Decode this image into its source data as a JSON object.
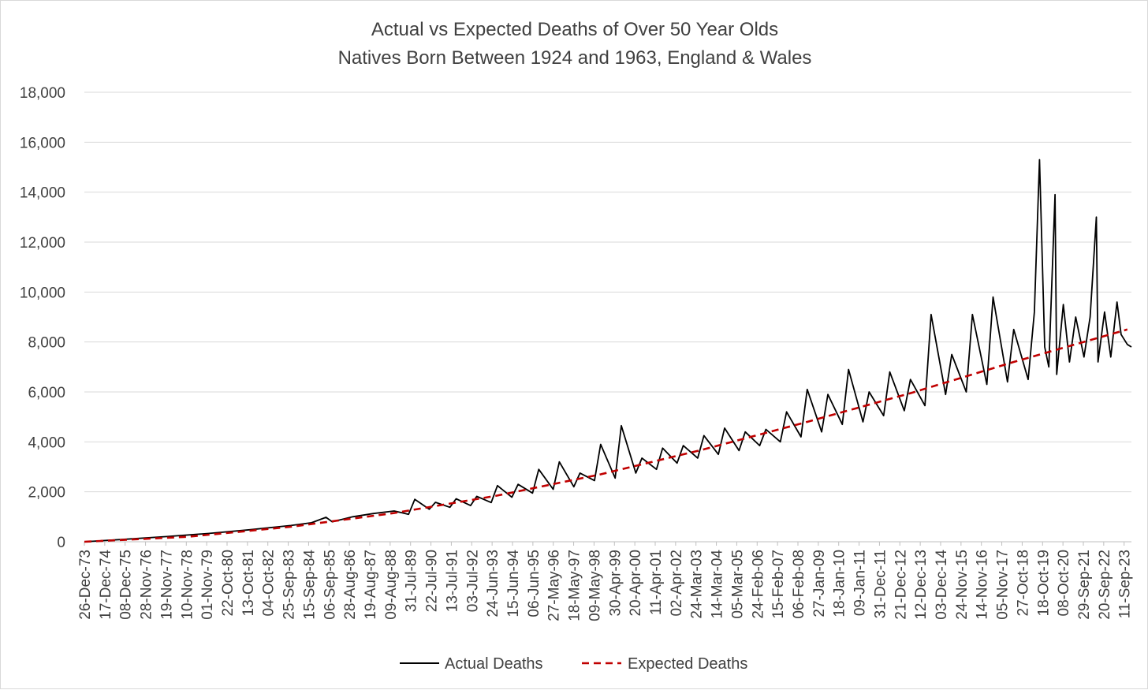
{
  "chart_data": {
    "type": "line",
    "title": "Actual vs Expected Deaths of Over 50 Year Olds",
    "subtitle": "Natives Born Between 1924 and 1963, England & Wales",
    "xlabel": "",
    "ylabel": "",
    "ylim": [
      0,
      18000
    ],
    "y_ticks": [
      "0",
      "2,000",
      "4,000",
      "6,000",
      "8,000",
      "10,000",
      "12,000",
      "14,000",
      "16,000",
      "18,000"
    ],
    "x_ticks": [
      "26-Dec-73",
      "17-Dec-74",
      "08-Dec-75",
      "28-Nov-76",
      "19-Nov-77",
      "10-Nov-78",
      "01-Nov-79",
      "22-Oct-80",
      "13-Oct-81",
      "04-Oct-82",
      "25-Sep-83",
      "15-Sep-84",
      "06-Sep-85",
      "28-Aug-86",
      "19-Aug-87",
      "09-Aug-88",
      "31-Jul-89",
      "22-Jul-90",
      "13-Jul-91",
      "03-Jul-92",
      "24-Jun-93",
      "15-Jun-94",
      "06-Jun-95",
      "27-May-96",
      "18-May-97",
      "09-May-98",
      "30-Apr-99",
      "20-Apr-00",
      "11-Apr-01",
      "02-Apr-02",
      "24-Mar-03",
      "14-Mar-04",
      "05-Mar-05",
      "24-Feb-06",
      "15-Feb-07",
      "06-Feb-08",
      "27-Jan-09",
      "18-Jan-10",
      "09-Jan-11",
      "31-Dec-11",
      "21-Dec-12",
      "12-Dec-13",
      "03-Dec-14",
      "24-Nov-15",
      "14-Nov-16",
      "05-Nov-17",
      "27-Oct-18",
      "18-Oct-19",
      "08-Oct-20",
      "29-Sep-21",
      "20-Sep-22",
      "11-Sep-23"
    ],
    "grid": true,
    "legend_placement": "bottom",
    "series": [
      {
        "name": "Actual Deaths",
        "color": "#000000",
        "style": "solid",
        "x": [
          1974.0,
          1976.0,
          1978.0,
          1980.0,
          1982.0,
          1984.0,
          1985.0,
          1985.7,
          1986.0,
          1987.0,
          1988.0,
          1989.0,
          1989.7,
          1990.0,
          1990.7,
          1991.0,
          1991.7,
          1992.0,
          1992.7,
          1993.0,
          1993.7,
          1994.0,
          1994.7,
          1995.0,
          1995.7,
          1996.0,
          1996.7,
          1997.0,
          1997.7,
          1998.0,
          1998.7,
          1999.0,
          1999.7,
          2000.0,
          2000.7,
          2001.0,
          2001.7,
          2002.0,
          2002.7,
          2003.0,
          2003.7,
          2004.0,
          2004.7,
          2005.0,
          2005.7,
          2006.0,
          2006.7,
          2007.0,
          2007.7,
          2008.0,
          2008.7,
          2009.0,
          2009.7,
          2010.0,
          2010.7,
          2011.0,
          2011.7,
          2012.0,
          2012.7,
          2013.0,
          2013.7,
          2014.0,
          2014.7,
          2015.0,
          2015.7,
          2016.0,
          2016.7,
          2017.0,
          2017.7,
          2018.0,
          2018.7,
          2019.0,
          2019.7,
          2020.0,
          2020.25,
          2020.5,
          2020.7,
          2021.0,
          2021.08,
          2021.4,
          2021.7,
          2022.0,
          2022.4,
          2022.7,
          2023.0,
          2023.08,
          2023.4,
          2023.7,
          2024.0,
          2024.2,
          2024.5,
          2024.7
        ],
        "y": [
          0,
          100,
          210,
          330,
          480,
          650,
          760,
          980,
          800,
          1000,
          1130,
          1230,
          1100,
          1700,
          1300,
          1580,
          1380,
          1720,
          1450,
          1820,
          1570,
          2250,
          1780,
          2300,
          1950,
          2900,
          2100,
          3200,
          2200,
          2750,
          2450,
          3900,
          2550,
          4650,
          2750,
          3350,
          2900,
          3750,
          3150,
          3850,
          3350,
          4250,
          3500,
          4550,
          3650,
          4400,
          3850,
          4500,
          4000,
          5200,
          4200,
          6100,
          4400,
          5900,
          4700,
          6900,
          4800,
          6000,
          5050,
          6800,
          5250,
          6500,
          5450,
          9100,
          5900,
          7500,
          6000,
          9100,
          6300,
          9800,
          6400,
          8500,
          6500,
          9200,
          15300,
          7800,
          7000,
          13900,
          6700,
          9500,
          7200,
          9000,
          7400,
          9000,
          13000,
          7200,
          9200,
          7400,
          9600,
          8300,
          7900,
          7800
        ]
      },
      {
        "name": "Expected Deaths",
        "color": "#c00000",
        "style": "dashed",
        "x": [
          1974.0,
          1979.0,
          1984.0,
          1989.0,
          1994.0,
          1999.0,
          2004.0,
          2009.0,
          2014.0,
          2019.0,
          2024.5
        ],
        "y": [
          0,
          200,
          600,
          1150,
          1850,
          2700,
          3700,
          4800,
          5950,
          7200,
          8500
        ]
      }
    ]
  }
}
